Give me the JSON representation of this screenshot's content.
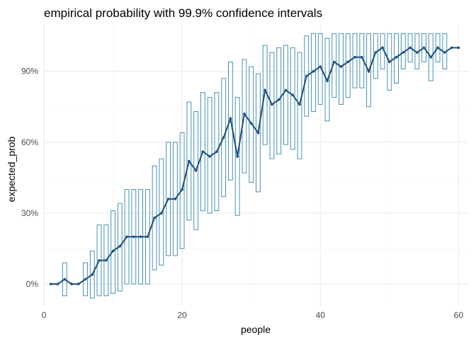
{
  "chart_data": {
    "type": "line",
    "title": "empirical probability with 99.9% confidence intervals",
    "xlabel": "people",
    "ylabel": "expected_prob",
    "xlim": [
      0,
      61.5
    ],
    "ylim": [
      -0.09,
      1.1
    ],
    "x_ticks": [
      0,
      20,
      40,
      60
    ],
    "x_tick_labels": [
      "0",
      "20",
      "40",
      "60"
    ],
    "y_ticks": [
      0,
      0.3,
      0.6,
      0.9
    ],
    "y_tick_labels": [
      "0%",
      "30%",
      "60%",
      "90%"
    ],
    "grid": true,
    "legend": "none",
    "colors": {
      "line": "#1f4e79",
      "interval": "#4a90b0",
      "grid_major": "#ebebeb",
      "grid_minor": "#f5f5f5"
    },
    "series": [
      {
        "x": [
          1,
          2,
          3,
          4,
          5,
          6,
          7,
          8,
          9,
          10,
          11,
          12,
          13,
          14,
          15,
          16,
          17,
          18,
          19,
          20,
          21,
          22,
          23,
          24,
          25,
          26,
          27,
          28,
          29,
          30,
          31,
          32,
          33,
          34,
          35,
          36,
          37,
          38,
          39,
          40,
          41,
          42,
          43,
          44,
          45,
          46,
          47,
          48,
          49,
          50,
          51,
          52,
          53,
          54,
          55,
          56,
          57,
          58,
          59,
          60
        ],
        "values": [
          0,
          0,
          0.02,
          0,
          0,
          0.02,
          0.04,
          0.1,
          0.1,
          0.14,
          0.16,
          0.2,
          0.2,
          0.2,
          0.2,
          0.28,
          0.3,
          0.36,
          0.36,
          0.4,
          0.52,
          0.48,
          0.56,
          0.54,
          0.56,
          0.62,
          0.7,
          0.54,
          0.72,
          0.68,
          0.64,
          0.82,
          0.76,
          0.78,
          0.82,
          0.8,
          0.76,
          0.88,
          0.9,
          0.92,
          0.86,
          0.94,
          0.92,
          0.94,
          0.96,
          0.96,
          0.9,
          0.98,
          1.0,
          0.94,
          0.96,
          0.98,
          1.0,
          0.98,
          1.0,
          0.96,
          1.0,
          0.98,
          1.0,
          1.0
        ],
        "ci_lower": [
          0,
          0,
          -0.05,
          0,
          0,
          -0.05,
          -0.06,
          -0.05,
          -0.05,
          -0.04,
          -0.03,
          0,
          0,
          0,
          0,
          0.06,
          0.08,
          0.12,
          0.12,
          0.15,
          0.27,
          0.23,
          0.31,
          0.3,
          0.31,
          0.37,
          0.44,
          0.29,
          0.47,
          0.43,
          0.39,
          0.59,
          0.53,
          0.55,
          0.59,
          0.57,
          0.53,
          0.71,
          0.73,
          0.76,
          0.69,
          0.79,
          0.76,
          0.79,
          0.83,
          0.83,
          0.75,
          0.87,
          0.91,
          0.82,
          0.85,
          0.91,
          0.94,
          0.91,
          0.94,
          0.86,
          0.94,
          0.91,
          1.0,
          1.0
        ],
        "ci_upper": [
          0,
          0,
          0.09,
          0,
          0,
          0.09,
          0.14,
          0.25,
          0.25,
          0.31,
          0.34,
          0.4,
          0.4,
          0.4,
          0.4,
          0.5,
          0.53,
          0.6,
          0.6,
          0.64,
          0.77,
          0.73,
          0.81,
          0.79,
          0.81,
          0.87,
          0.94,
          0.79,
          0.95,
          0.92,
          0.89,
          1.01,
          0.98,
          1.0,
          1.01,
          1.0,
          0.98,
          1.05,
          1.06,
          1.06,
          1.04,
          1.06,
          1.06,
          1.06,
          1.06,
          1.06,
          1.06,
          1.06,
          1.06,
          1.06,
          1.06,
          1.06,
          1.06,
          1.06,
          1.06,
          1.06,
          1.06,
          1.06,
          1.0,
          1.0
        ]
      }
    ]
  }
}
